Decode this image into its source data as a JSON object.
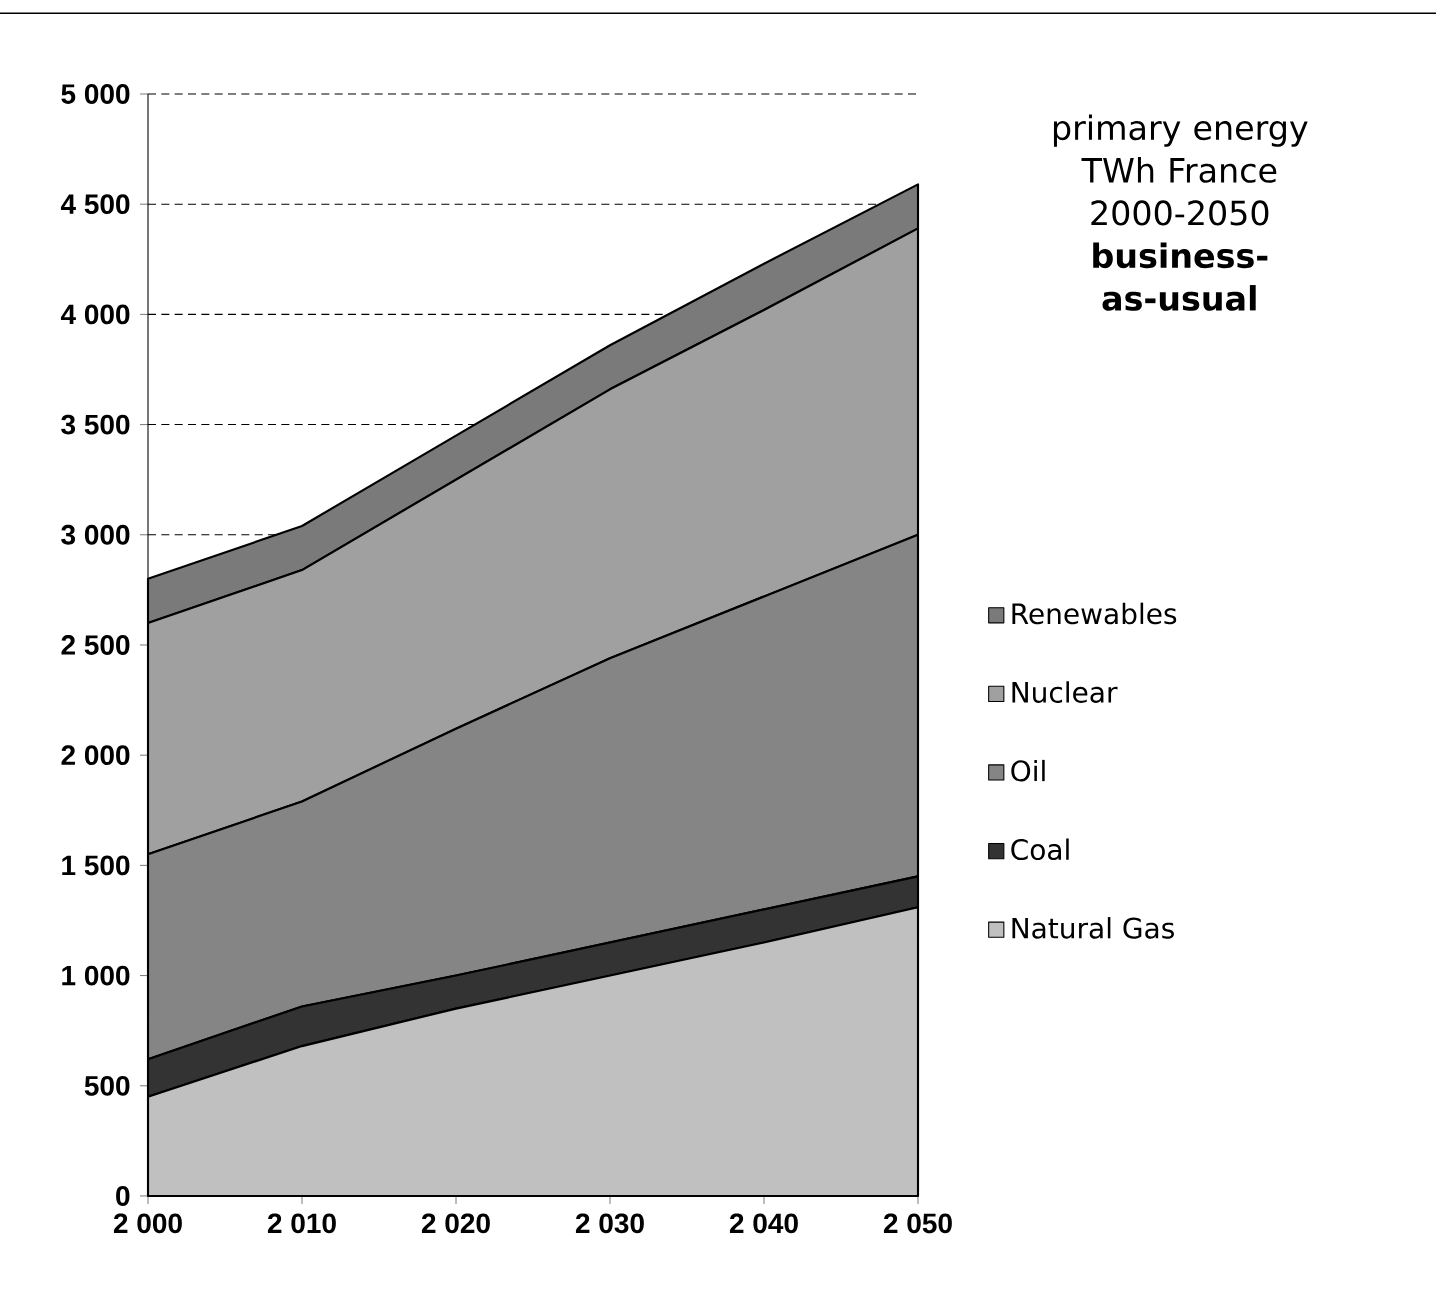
{
  "chart_data": {
    "type": "area",
    "title": "primary energy TWh France 2000-2050",
    "subtitle": "business-as-usual",
    "stacked": true,
    "x": [
      2000,
      2010,
      2020,
      2030,
      2040,
      2050
    ],
    "series": [
      {
        "name": "Natural Gas",
        "color": "#c0c0c0",
        "values": [
          450,
          680,
          850,
          1000,
          1150,
          1310
        ]
      },
      {
        "name": "Coal",
        "color": "#333333",
        "values": [
          170,
          180,
          150,
          150,
          150,
          140
        ]
      },
      {
        "name": "Oil",
        "color": "#858585",
        "values": [
          930,
          930,
          1120,
          1290,
          1420,
          1550
        ]
      },
      {
        "name": "Nuclear",
        "color": "#a0a0a0",
        "values": [
          1050,
          1050,
          1130,
          1220,
          1300,
          1390
        ]
      },
      {
        "name": "Renewables",
        "color": "#7a7a7a",
        "values": [
          200,
          200,
          200,
          200,
          210,
          200
        ]
      }
    ],
    "xlim": [
      2000,
      2050
    ],
    "xticks": [
      {
        "value": 2000,
        "label": "2 000"
      },
      {
        "value": 2010,
        "label": "2 010"
      },
      {
        "value": 2020,
        "label": "2 020"
      },
      {
        "value": 2030,
        "label": "2 030"
      },
      {
        "value": 2040,
        "label": "2 040"
      },
      {
        "value": 2050,
        "label": "2 050"
      }
    ],
    "ylim": [
      0,
      5000
    ],
    "yticks": [
      0,
      500,
      {
        "value": 1000,
        "label": "1 000"
      },
      {
        "value": 1500,
        "label": "1 500"
      },
      {
        "value": 2000,
        "label": "2 000"
      },
      {
        "value": 2500,
        "label": "2 500"
      },
      {
        "value": 3000,
        "label": "3 000"
      },
      {
        "value": 3500,
        "label": "3 500"
      },
      {
        "value": 4000,
        "label": "4 000"
      },
      {
        "value": 4500,
        "label": "4 500"
      },
      {
        "value": 5000,
        "label": "5 000"
      }
    ],
    "grid": "y",
    "legend": "right"
  }
}
